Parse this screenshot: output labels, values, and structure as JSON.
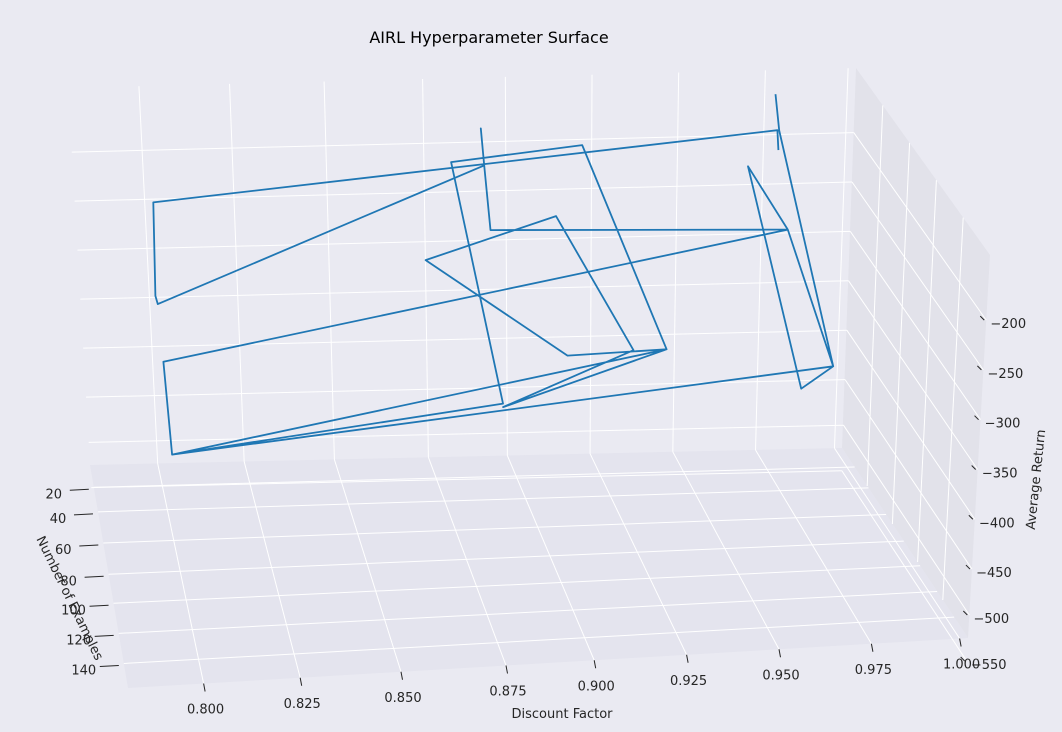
{
  "chart_data": {
    "type": "line",
    "projection": "3d",
    "title": "AIRL Hyperparameter Surface",
    "xlabel": "Discount Factor",
    "ylabel": "Number of Examples",
    "zlabel": "Average Return",
    "x_ticks": [
      "0.800",
      "0.825",
      "0.850",
      "0.875",
      "0.900",
      "0.925",
      "0.950",
      "0.975",
      "1.000"
    ],
    "y_ticks": [
      "20",
      "40",
      "60",
      "80",
      "100",
      "120",
      "140"
    ],
    "z_ticks": [
      "−200",
      "−250",
      "−300",
      "−350",
      "−400",
      "−450",
      "−500",
      "−550"
    ],
    "grid": true,
    "series": [
      {
        "color": "#1f77b4",
        "points": [
          {
            "x": 0.99,
            "y": 10,
            "z": -212
          },
          {
            "x": 0.99,
            "y": 10,
            "z": -190
          },
          {
            "x": 0.8,
            "y": 10,
            "z": -250
          },
          {
            "x": 0.8,
            "y": 10,
            "z": -355
          },
          {
            "x": 0.8,
            "y": 20,
            "z": -340
          },
          {
            "x": 0.9,
            "y": 20,
            "z": -190
          },
          {
            "x": 0.9,
            "y": 10,
            "z": -178
          },
          {
            "x": 0.9,
            "y": 20,
            "z": -190
          },
          {
            "x": 0.9,
            "y": 40,
            "z": -205
          },
          {
            "x": 0.99,
            "y": 40,
            "z": -215
          },
          {
            "x": 0.8,
            "y": 40,
            "z": -358
          },
          {
            "x": 0.8,
            "y": 70,
            "z": -400
          },
          {
            "x": 0.95,
            "y": 70,
            "z": -270
          },
          {
            "x": 0.92,
            "y": 70,
            "z": -275
          },
          {
            "x": 0.88,
            "y": 40,
            "z": -240
          },
          {
            "x": 0.92,
            "y": 40,
            "z": -190
          },
          {
            "x": 0.94,
            "y": 70,
            "z": -270
          },
          {
            "x": 0.9,
            "y": 70,
            "z": -345
          },
          {
            "x": 0.95,
            "y": 70,
            "z": -270
          },
          {
            "x": 0.93,
            "y": 20,
            "z": -170
          },
          {
            "x": 0.89,
            "y": 20,
            "z": -185
          },
          {
            "x": 0.9,
            "y": 70,
            "z": -340
          },
          {
            "x": 0.8,
            "y": 70,
            "z": -400
          },
          {
            "x": 1.0,
            "y": 70,
            "z": -300
          },
          {
            "x": 0.99,
            "y": 40,
            "z": -215
          },
          {
            "x": 0.98,
            "y": 20,
            "z": -200
          },
          {
            "x": 0.99,
            "y": 70,
            "z": -330
          },
          {
            "x": 1.0,
            "y": 70,
            "z": -300
          },
          {
            "x": 0.99,
            "y": 20,
            "z": -160
          },
          {
            "x": 0.99,
            "y": 10,
            "z": -150
          }
        ]
      }
    ]
  }
}
